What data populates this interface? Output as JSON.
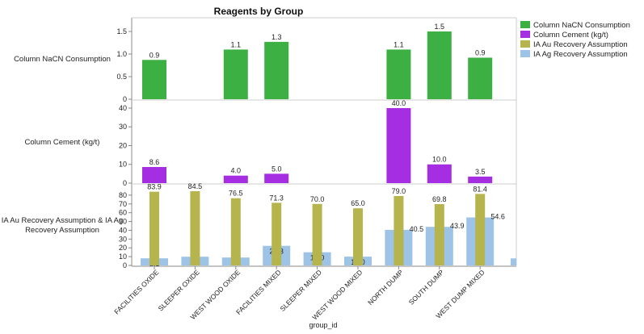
{
  "chart_data": {
    "type": "bar",
    "title": "Reagents by Group",
    "xlabel": "group_id",
    "categories": [
      "FACILITIES OXIDE",
      "SLEEPER OXIDE",
      "WEST WOOD OXIDE",
      "FACILITIES MIXED",
      "SLEEPER MIXED",
      "WEST WOOD MIXED",
      "NORTH DUMP",
      "SOUTH DUMP",
      "WEST DUMP MIXED",
      ""
    ],
    "grid": false,
    "legend": "top-right",
    "panels": [
      {
        "ylabel": [
          "Column NaCN Consumption"
        ],
        "ylim": [
          0,
          1.75
        ],
        "ticks": [
          0,
          0.5,
          1.0,
          1.5
        ],
        "tick_labels": [
          "0",
          "0.5",
          "1.0",
          "1.5"
        ],
        "series": [
          {
            "name": "Column NaCN Consumption",
            "color": "#3cb043",
            "values": [
              0.87,
              null,
              1.1,
              1.27,
              null,
              null,
              1.1,
              1.5,
              0.92,
              null
            ],
            "labels": [
              "0.9",
              "",
              "1.1",
              "1.3",
              "",
              "",
              "1.1",
              "1.5",
              "0.9",
              ""
            ]
          }
        ]
      },
      {
        "ylabel": [
          "Column Cement (kg/t)"
        ],
        "ylim": [
          0,
          43
        ],
        "ticks": [
          0,
          10,
          20,
          30,
          40
        ],
        "tick_labels": [
          "0",
          "10",
          "20",
          "30",
          "40"
        ],
        "series": [
          {
            "name": "Column Cement (kg/t)",
            "color": "#a52ee3",
            "values": [
              8.6,
              null,
              4.0,
              5.0,
              null,
              null,
              40.0,
              10.0,
              3.5,
              null
            ],
            "labels": [
              "8.6",
              "",
              "4.0",
              "5.0",
              "",
              "",
              "40.0",
              "10.0",
              "3.5",
              ""
            ]
          }
        ]
      },
      {
        "ylabel": [
          "IA Au Recovery Assumption & IA Ag",
          "Recovery Assumption"
        ],
        "ylim": [
          0,
          90
        ],
        "ticks": [
          0,
          10,
          20,
          30,
          40,
          50,
          60,
          70,
          80
        ],
        "tick_labels": [
          "0",
          "10",
          "20",
          "30",
          "40",
          "50",
          "60",
          "70",
          "80"
        ],
        "series": [
          {
            "name": "IA Ag Recovery Assumption",
            "color": "#9dc3e6",
            "values": [
              8.1,
              9.9,
              9.0,
              22.3,
              15.0,
              10.0,
              40.5,
              43.9,
              54.6,
              8.0
            ],
            "labels": [
              "8.1",
              "9.9",
              "9.0",
              "22.3",
              "15.0",
              "10.0",
              "40.5",
              "43.9",
              "54.6",
              ""
            ]
          },
          {
            "name": "IA Au Recovery Assumption",
            "color": "#b5b44d",
            "values": [
              83.9,
              84.5,
              76.5,
              71.3,
              70.0,
              65.0,
              79.0,
              69.8,
              81.4,
              null
            ],
            "labels": [
              "83.9",
              "84.5",
              "76.5",
              "71.3",
              "70.0",
              "65.0",
              "79.0",
              "69.8",
              "81.4",
              ""
            ]
          }
        ]
      }
    ],
    "legend_entries": [
      {
        "name": "Column NaCN Consumption",
        "color": "#3cb043"
      },
      {
        "name": "Column Cement (kg/t)",
        "color": "#a52ee3"
      },
      {
        "name": "IA Au Recovery Assumption",
        "color": "#b5b44d"
      },
      {
        "name": "IA Ag Recovery Assumption",
        "color": "#9dc3e6"
      }
    ]
  }
}
